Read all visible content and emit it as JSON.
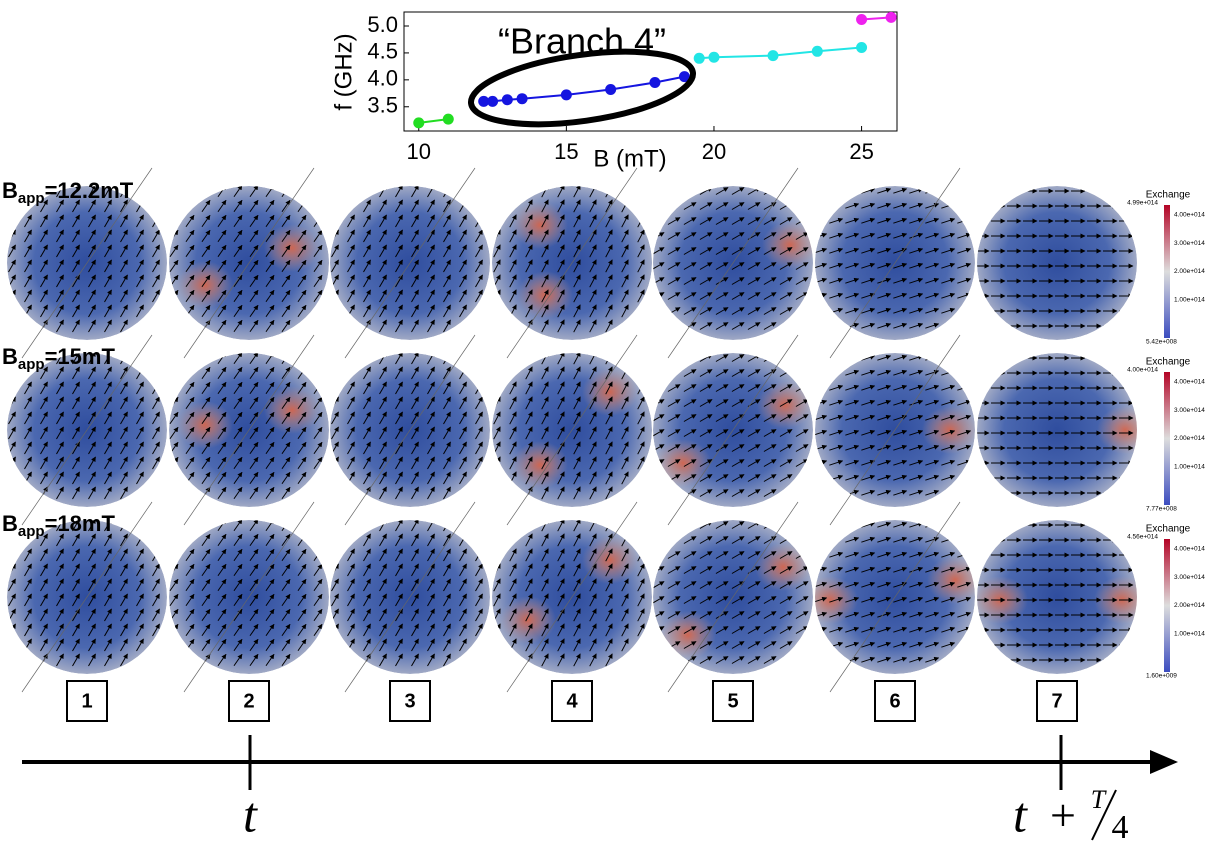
{
  "chart_data": {
    "type": "line",
    "annotation": "“Branch 4”",
    "x_label": "B (mT)",
    "y_label": "f (GHz)",
    "xlim": [
      9.5,
      26.2
    ],
    "ylim": [
      3.05,
      5.26
    ],
    "xticks": [
      10,
      15,
      20,
      25
    ],
    "yticks": [
      {
        "value": 3.5,
        "label": "3.5"
      },
      {
        "value": 4.0,
        "label": "4.0"
      },
      {
        "value": 4.5,
        "label": "4.5"
      },
      {
        "value": 5.0,
        "label": "5.0"
      }
    ],
    "series": [
      {
        "color": "#22dd22",
        "x": [
          10,
          11
        ],
        "values": [
          3.2,
          3.27
        ]
      },
      {
        "color": "#1515e0",
        "x": [
          12.2,
          12.5,
          13,
          13.5,
          15,
          16.5,
          18,
          19
        ],
        "values": [
          3.6,
          3.6,
          3.63,
          3.65,
          3.72,
          3.82,
          3.95,
          4.06
        ]
      },
      {
        "color": "#22e5e5",
        "x": [
          19.5,
          20,
          22,
          23.5,
          25
        ],
        "values": [
          4.4,
          4.42,
          4.45,
          4.53,
          4.6
        ]
      },
      {
        "color": "#ee22ee",
        "x": [
          25,
          26
        ],
        "values": [
          5.12,
          5.16
        ]
      }
    ]
  },
  "rows": [
    {
      "label": {
        "main": "B",
        "sub": "app",
        "rest": "=12.2mT"
      },
      "colorbar": {
        "title": "Exchange",
        "top": "4.99e+014",
        "ticks": [
          "4.00e+014",
          "3.00e+014",
          "2.00e+014",
          "1.00e+014"
        ],
        "bottom": "5.42e+008"
      }
    },
    {
      "label": {
        "main": "B",
        "sub": "app",
        "rest": "=15mT"
      },
      "colorbar": {
        "title": "Exchange",
        "top": "4.00e+014",
        "ticks": [
          "4.00e+014",
          "3.00e+014",
          "2.00e+014",
          "1.00e+014"
        ],
        "bottom": "7.77e+008"
      }
    },
    {
      "label": {
        "main": "B",
        "sub": "app",
        "rest": "=18mT"
      },
      "colorbar": {
        "title": "Exchange",
        "top": "4.56e+014",
        "ticks": [
          "4.00e+014",
          "3.00e+014",
          "2.00e+014",
          "1.00e+014"
        ],
        "bottom": "1.60e+009"
      }
    }
  ],
  "frames": [
    "1",
    "2",
    "3",
    "4",
    "5",
    "6",
    "7"
  ],
  "timeline": {
    "start": "t",
    "end": {
      "t": "t",
      "plus": "+",
      "num": "T",
      "den": "4"
    }
  }
}
